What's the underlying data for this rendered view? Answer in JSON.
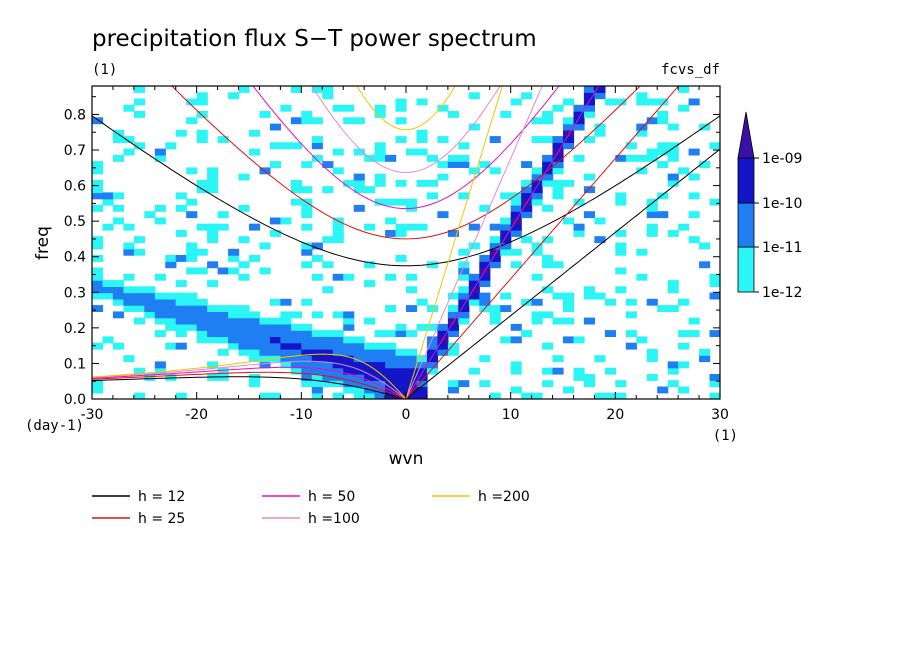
{
  "chart_data": {
    "type": "heatmap",
    "title": "precipitation flux S−T power spectrum",
    "subtitle": "(1)",
    "corner_label": "fcvs_df",
    "xlabel": "wvn",
    "ylabel": "freq",
    "x_unit": "(1)",
    "y_unit": "(day-1)",
    "xlim": [
      -30,
      30
    ],
    "ylim": [
      0.0,
      0.88
    ],
    "xticks": [
      "-30",
      "-20",
      "-10",
      "0",
      "10",
      "20",
      "30"
    ],
    "xtick_values": [
      -30,
      -20,
      -10,
      0,
      10,
      20,
      30
    ],
    "yticks": [
      "0.0",
      "0.1",
      "0.2",
      "0.3",
      "0.4",
      "0.5",
      "0.6",
      "0.7",
      "0.8"
    ],
    "ytick_values": [
      0.0,
      0.1,
      0.2,
      0.3,
      0.4,
      0.5,
      0.6,
      0.7,
      0.8
    ],
    "colorbar": {
      "labels": [
        "1e-12",
        "1e-11",
        "1e-10",
        "1e-09"
      ],
      "colors": [
        "#2bf5f5",
        "#1f7ef2",
        "#1414c8",
        "#3a10a8"
      ]
    },
    "dispersion_curves": [
      {
        "name": "h = 12",
        "h": 12,
        "color": "#000000"
      },
      {
        "name": "h = 25",
        "h": 25,
        "color": "#e01010"
      },
      {
        "name": "h = 50",
        "h": 50,
        "color": "#e010c8"
      },
      {
        "name": "h =100",
        "h": 100,
        "color": "#dc8cd8"
      },
      {
        "name": "h =200",
        "h": 200,
        "color": "#f0c800"
      }
    ]
  }
}
